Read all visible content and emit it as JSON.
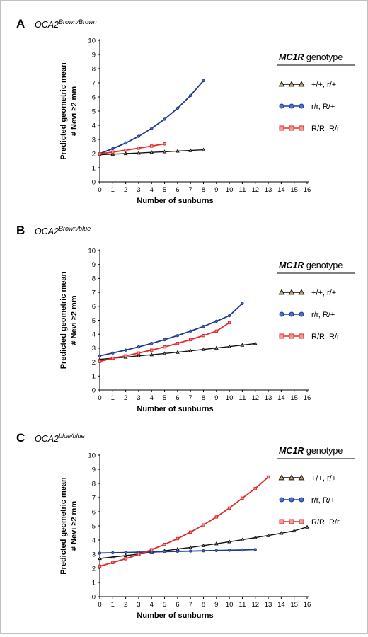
{
  "chart_data": [
    {
      "type": "line",
      "panel_label": "A",
      "subtitle": {
        "base": "OCA2",
        "superscript": "Brown/Brown"
      },
      "xlabel": "Number of sunburns",
      "ylabel_lines": [
        "Predicted geometric mean",
        "# Nevi ≥2 mm"
      ],
      "xlim": [
        0,
        16
      ],
      "ylim": [
        0,
        10
      ],
      "x_ticks": [
        "0",
        "1",
        "2",
        "3",
        "4",
        "5",
        "6",
        "7",
        "8",
        "9",
        "10",
        "11",
        "12",
        "13",
        "14",
        "15",
        "16"
      ],
      "y_ticks": [
        "0",
        "1",
        "2",
        "3",
        "4",
        "5",
        "6",
        "7",
        "8",
        "9",
        "10"
      ],
      "legend": {
        "title_italic": "MC1R",
        "title_rest": " genotype",
        "position": "right"
      },
      "series": [
        {
          "name": "+/+, r/+",
          "marker": "triangle",
          "color": "#111111",
          "marker_fill": "#c9a26a",
          "x": [
            0,
            1,
            2,
            3,
            4,
            5,
            6,
            7,
            8
          ],
          "y": [
            1.92,
            1.96,
            2.0,
            2.04,
            2.09,
            2.13,
            2.18,
            2.22,
            2.27
          ]
        },
        {
          "name": "r/r, R/+",
          "marker": "circle",
          "color": "#1e3a8f",
          "marker_fill": "#4a6fd0",
          "x": [
            0,
            1,
            2,
            3,
            4,
            5,
            6,
            7,
            8
          ],
          "y": [
            2.0,
            2.35,
            2.75,
            3.22,
            3.78,
            4.43,
            5.2,
            6.1,
            7.15
          ]
        },
        {
          "name": "R/R, R/r",
          "marker": "square",
          "color": "#e02a2a",
          "marker_fill": "#f29a9a",
          "x": [
            0,
            1,
            2,
            3,
            4,
            5
          ],
          "y": [
            1.98,
            2.11,
            2.24,
            2.38,
            2.53,
            2.69
          ]
        }
      ]
    },
    {
      "type": "line",
      "panel_label": "B",
      "subtitle": {
        "base": "OCA2",
        "superscript": "Brown/blue"
      },
      "xlabel": "Number of sunburns",
      "ylabel_lines": [
        "Predicted geometric mean",
        "# Nevi ≥2 mm"
      ],
      "xlim": [
        0,
        16
      ],
      "ylim": [
        0,
        10
      ],
      "x_ticks": [
        "0",
        "1",
        "2",
        "3",
        "4",
        "5",
        "6",
        "7",
        "8",
        "9",
        "10",
        "11",
        "12",
        "13",
        "14",
        "15",
        "16"
      ],
      "y_ticks": [
        "0",
        "1",
        "2",
        "3",
        "4",
        "5",
        "6",
        "7",
        "8",
        "9",
        "10"
      ],
      "legend": {
        "title_italic": "MC1R",
        "title_rest": " genotype",
        "position": "right"
      },
      "series": [
        {
          "name": "+/+, r/+",
          "marker": "triangle",
          "color": "#111111",
          "marker_fill": "#c9a26a",
          "x": [
            0,
            1,
            2,
            3,
            4,
            5,
            6,
            7,
            8,
            9,
            10,
            11,
            12
          ],
          "y": [
            2.2,
            2.28,
            2.36,
            2.45,
            2.53,
            2.62,
            2.71,
            2.81,
            2.91,
            3.01,
            3.11,
            3.22,
            3.33
          ]
        },
        {
          "name": "r/r, R/+",
          "marker": "circle",
          "color": "#1e3a8f",
          "marker_fill": "#4a6fd0",
          "x": [
            0,
            1,
            2,
            3,
            4,
            5,
            6,
            7,
            8,
            9,
            10,
            11
          ],
          "y": [
            2.45,
            2.65,
            2.86,
            3.09,
            3.34,
            3.61,
            3.9,
            4.22,
            4.56,
            4.93,
            5.33,
            6.2
          ]
        },
        {
          "name": "R/R, R/r",
          "marker": "square",
          "color": "#e02a2a",
          "marker_fill": "#f29a9a",
          "x": [
            0,
            1,
            2,
            3,
            4,
            5,
            6,
            7,
            8,
            9,
            10
          ],
          "y": [
            2.05,
            2.28,
            2.45,
            2.65,
            2.86,
            3.09,
            3.34,
            3.61,
            3.9,
            4.22,
            4.83
          ]
        }
      ]
    },
    {
      "type": "line",
      "panel_label": "C",
      "subtitle": {
        "base": "OCA2",
        "superscript": "blue/blue"
      },
      "xlabel": "Number of sunburns",
      "ylabel_lines": [
        "Predicted geometric mean",
        "# Nevi ≥2 mm"
      ],
      "xlim": [
        0,
        16
      ],
      "ylim": [
        0,
        10
      ],
      "x_ticks": [
        "0",
        "1",
        "2",
        "3",
        "4",
        "5",
        "6",
        "7",
        "8",
        "9",
        "10",
        "11",
        "12",
        "13",
        "14",
        "15",
        "16"
      ],
      "y_ticks": [
        "0",
        "1",
        "2",
        "3",
        "4",
        "5",
        "6",
        "7",
        "8",
        "9",
        "10"
      ],
      "legend": {
        "title_italic": "MC1R",
        "title_rest": " genotype",
        "position": "top-right"
      },
      "series": [
        {
          "name": "+/+, r/+",
          "marker": "triangle",
          "color": "#111111",
          "marker_fill": "#c9a26a",
          "x": [
            0,
            1,
            2,
            3,
            4,
            5,
            6,
            7,
            8,
            9,
            10,
            11,
            12,
            13,
            14,
            15,
            16
          ],
          "y": [
            2.7,
            2.8,
            2.9,
            3.01,
            3.12,
            3.24,
            3.36,
            3.48,
            3.61,
            3.74,
            3.88,
            4.02,
            4.17,
            4.32,
            4.48,
            4.65,
            4.92
          ]
        },
        {
          "name": "r/r, R/+",
          "marker": "circle",
          "color": "#1e3a8f",
          "marker_fill": "#4a6fd0",
          "x": [
            0,
            1,
            2,
            3,
            4,
            5,
            6,
            7,
            8,
            9,
            10,
            11,
            12
          ],
          "y": [
            3.08,
            3.1,
            3.12,
            3.14,
            3.16,
            3.18,
            3.2,
            3.22,
            3.24,
            3.26,
            3.28,
            3.3,
            3.33
          ]
        },
        {
          "name": "R/R, R/r",
          "marker": "square",
          "color": "#e02a2a",
          "marker_fill": "#f29a9a",
          "x": [
            0,
            1,
            2,
            3,
            4,
            5,
            6,
            7,
            8,
            9,
            10,
            11,
            12,
            13
          ],
          "y": [
            2.15,
            2.41,
            2.68,
            2.98,
            3.32,
            3.69,
            4.1,
            4.56,
            5.07,
            5.63,
            6.26,
            6.96,
            7.64,
            8.45
          ]
        }
      ]
    }
  ]
}
